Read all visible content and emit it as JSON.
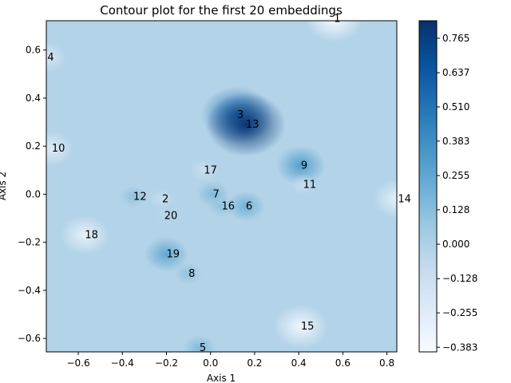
{
  "chart_data": {
    "type": "contour",
    "title": "Contour plot for the first 20 embeddings",
    "xlabel": "Axis 1",
    "ylabel": "Axis 2",
    "xlim": [
      -0.745,
      0.845
    ],
    "ylim": [
      -0.656,
      0.722
    ],
    "xticks": [
      {
        "value": -0.6,
        "label": "−0.6"
      },
      {
        "value": -0.4,
        "label": "−0.4"
      },
      {
        "value": -0.2,
        "label": "−0.2"
      },
      {
        "value": 0.0,
        "label": "0.0"
      },
      {
        "value": 0.2,
        "label": "0.2"
      },
      {
        "value": 0.4,
        "label": "0.4"
      },
      {
        "value": 0.6,
        "label": "0.6"
      },
      {
        "value": 0.8,
        "label": "0.8"
      }
    ],
    "yticks": [
      {
        "value": -0.6,
        "label": "−0.6"
      },
      {
        "value": -0.4,
        "label": "−0.4"
      },
      {
        "value": -0.2,
        "label": "−0.2"
      },
      {
        "value": 0.0,
        "label": "0.0"
      },
      {
        "value": 0.2,
        "label": "0.2"
      },
      {
        "value": 0.4,
        "label": "0.4"
      },
      {
        "value": 0.6,
        "label": "0.6"
      }
    ],
    "colormap": "Blues",
    "background_color": "#b3d3e8",
    "colorbar": {
      "min": -0.4,
      "max": 0.83,
      "ticks": [
        {
          "value": 0.765,
          "label": "0.765"
        },
        {
          "value": 0.637,
          "label": "0.637"
        },
        {
          "value": 0.51,
          "label": "0.510"
        },
        {
          "value": 0.383,
          "label": "0.383"
        },
        {
          "value": 0.255,
          "label": "0.255"
        },
        {
          "value": 0.128,
          "label": "0.128"
        },
        {
          "value": 0.0,
          "label": "0.000"
        },
        {
          "value": -0.128,
          "label": "−0.128"
        },
        {
          "value": -0.255,
          "label": "−0.255"
        },
        {
          "value": -0.383,
          "label": "−0.383"
        }
      ]
    },
    "points": [
      {
        "label": "1",
        "x": 0.56,
        "y": 0.73,
        "z": -0.383
      },
      {
        "label": "2",
        "x": -0.22,
        "y": -0.02,
        "z": -0.1
      },
      {
        "label": "3",
        "x": 0.12,
        "y": 0.33,
        "z": 0.5
      },
      {
        "label": "4",
        "x": -0.74,
        "y": 0.57,
        "z": -0.2
      },
      {
        "label": "5",
        "x": -0.05,
        "y": -0.64,
        "z": 0.15
      },
      {
        "label": "6",
        "x": 0.16,
        "y": -0.05,
        "z": 0.2
      },
      {
        "label": "7",
        "x": 0.01,
        "y": 0.0,
        "z": 0.15
      },
      {
        "label": "8",
        "x": -0.1,
        "y": -0.33,
        "z": 0.1
      },
      {
        "label": "9",
        "x": 0.41,
        "y": 0.12,
        "z": 0.3
      },
      {
        "label": "10",
        "x": -0.72,
        "y": 0.19,
        "z": -0.25
      },
      {
        "label": "11",
        "x": 0.42,
        "y": 0.04,
        "z": -0.1
      },
      {
        "label": "12",
        "x": -0.35,
        "y": -0.01,
        "z": 0.1
      },
      {
        "label": "13",
        "x": 0.16,
        "y": 0.29,
        "z": 0.8
      },
      {
        "label": "14",
        "x": 0.85,
        "y": -0.02,
        "z": -0.3
      },
      {
        "label": "15",
        "x": 0.41,
        "y": -0.55,
        "z": -0.35
      },
      {
        "label": "16",
        "x": 0.05,
        "y": -0.05,
        "z": 0.1
      },
      {
        "label": "17",
        "x": -0.03,
        "y": 0.1,
        "z": -0.12
      },
      {
        "label": "18",
        "x": -0.57,
        "y": -0.17,
        "z": -0.3
      },
      {
        "label": "19",
        "x": -0.2,
        "y": -0.25,
        "z": 0.25
      },
      {
        "label": "20",
        "x": -0.21,
        "y": -0.09,
        "z": -0.05
      }
    ]
  }
}
